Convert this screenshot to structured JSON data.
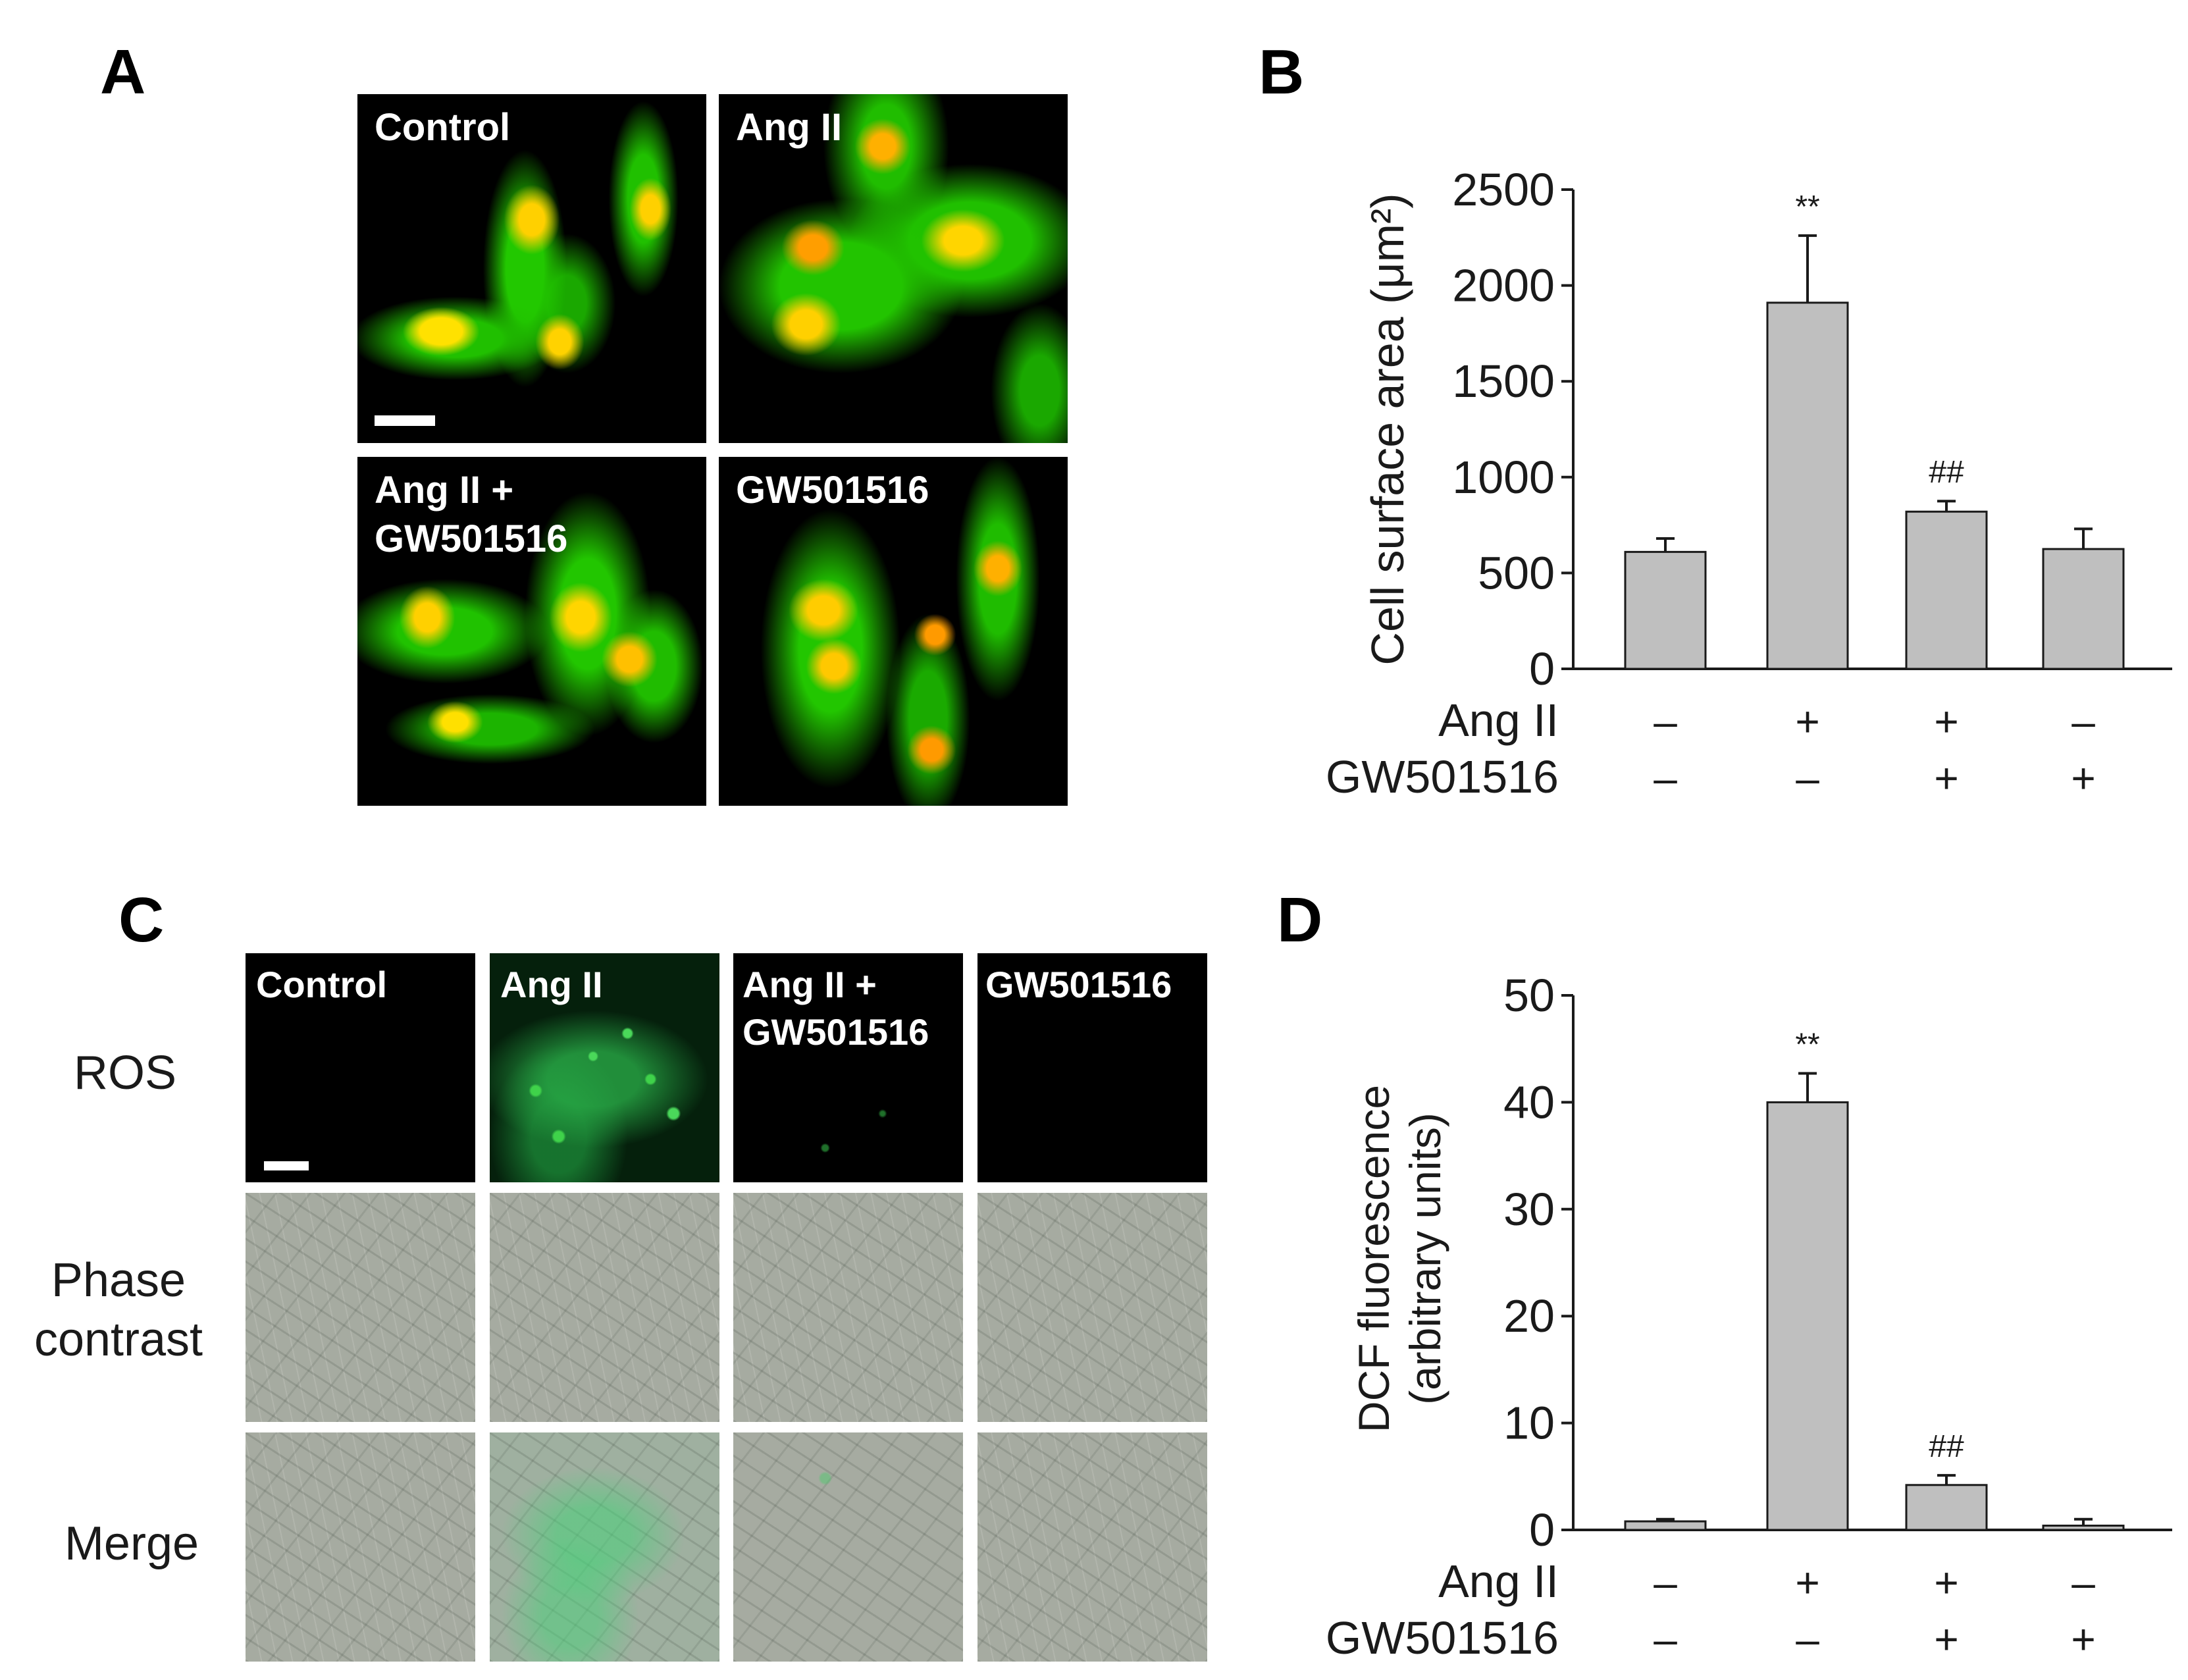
{
  "panels": {
    "a": "A",
    "b": "B",
    "c": "C",
    "d": "D"
  },
  "panel_a": {
    "images": [
      {
        "label": "Control"
      },
      {
        "label": "Ang II"
      },
      {
        "label": "Ang II +\nGW501516"
      },
      {
        "label": "GW501516"
      }
    ]
  },
  "panel_c": {
    "columns": [
      "Control",
      "Ang II",
      "Ang II +\nGW501516",
      "GW501516"
    ],
    "rows": [
      "ROS",
      "Phase\ncontrast",
      "Merge"
    ]
  },
  "treatment_table": {
    "row_labels": [
      "Ang II",
      "GW501516"
    ],
    "ang_ii": [
      "–",
      "+",
      "+",
      "–"
    ],
    "gw501516": [
      "–",
      "–",
      "+",
      "+"
    ]
  },
  "colors": {
    "bar_fill": "#bfbfbf",
    "bar_stroke": "#1a1a1a",
    "fluor_green": "#22c400",
    "nucleus_yellow": "#ffd500"
  },
  "chart_data": [
    {
      "type": "bar",
      "panel": "B",
      "ylabel": "Cell surface area (μm²)",
      "ylim": [
        0,
        2500
      ],
      "yticks": [
        "0",
        "500",
        "1000",
        "1500",
        "2000",
        "2500"
      ],
      "yticks_values": [
        0,
        500,
        1000,
        1500,
        2000,
        2500
      ],
      "groups": [
        "1",
        "2",
        "3",
        "4"
      ],
      "values": [
        610,
        1910,
        820,
        625
      ],
      "errors": [
        70,
        350,
        55,
        105
      ],
      "annotations": [
        "",
        "**",
        "##",
        ""
      ],
      "grid": false
    },
    {
      "type": "bar",
      "panel": "D",
      "ylabel": "DCF fluorescence\n(arbitrary units)",
      "ylim": [
        0,
        50
      ],
      "yticks": [
        "0",
        "10",
        "20",
        "30",
        "40",
        "50"
      ],
      "yticks_values": [
        0,
        10,
        20,
        30,
        40,
        50
      ],
      "groups": [
        "1",
        "2",
        "3",
        "4"
      ],
      "values": [
        0.8,
        40.0,
        4.2,
        0.4
      ],
      "errors": [
        0.2,
        2.7,
        0.9,
        0.6
      ],
      "annotations": [
        "",
        "**",
        "##",
        ""
      ],
      "grid": false
    }
  ]
}
